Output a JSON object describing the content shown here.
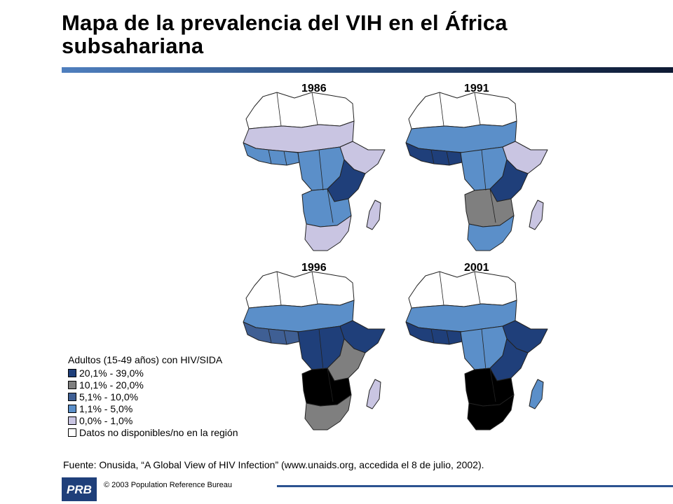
{
  "title": "Mapa de la prevalencia del VIH en el África subsahariana",
  "colors": {
    "c20_39": "#1f3f7a",
    "c10_20": "#7f7f7f",
    "c5_10": "#3f5f94",
    "c1_5": "#5b8fc9",
    "c0_1": "#c9c5e2",
    "no_data": "#ffffff",
    "severe": "#000000",
    "title_bar": "#2c4f80"
  },
  "maps": [
    {
      "year": "1986",
      "levels": {
        "north": "no_data",
        "sahel": "c0_1",
        "west": "c1_5",
        "horn": "c0_1",
        "central": "c1_5",
        "east": "c20_39",
        "south_central": "c1_5",
        "south": "c0_1",
        "madagascar": "c0_1"
      }
    },
    {
      "year": "1991",
      "levels": {
        "north": "no_data",
        "sahel": "c1_5",
        "west": "c20_39",
        "horn": "c0_1",
        "central": "c1_5",
        "east": "c20_39",
        "south_central": "c10_20",
        "south": "c1_5",
        "madagascar": "c0_1"
      }
    },
    {
      "year": "1996",
      "levels": {
        "north": "no_data",
        "sahel": "c1_5",
        "west": "c5_10",
        "horn": "c20_39",
        "central": "c20_39",
        "east": "c10_20",
        "south_central": "severe",
        "south": "c10_20",
        "madagascar": "c0_1"
      }
    },
    {
      "year": "2001",
      "levels": {
        "north": "no_data",
        "sahel": "c1_5",
        "west": "c20_39",
        "horn": "c20_39",
        "central": "c1_5",
        "east": "c20_39",
        "south_central": "severe",
        "south": "severe",
        "madagascar": "c1_5"
      }
    }
  ],
  "legend": {
    "title": "Adultos (15-49 años) con HIV/SIDA",
    "items": [
      {
        "label": "20,1% - 39,0%",
        "color": "#1f3f7a"
      },
      {
        "label": "10,1% - 20,0%",
        "color": "#7f7f7f"
      },
      {
        "label": "5,1% - 10,0%",
        "color": "#3f5f94"
      },
      {
        "label": "1,1% - 5,0%",
        "color": "#5b8fc9"
      },
      {
        "label": "0,0% - 1,0%",
        "color": "#c9c5e2"
      },
      {
        "label": "Datos no disponibles/no en la región",
        "color": "#ffffff"
      }
    ]
  },
  "source": "Fuente: Onusida, “A Global View of HIV Infection” (www.unaids.org, accedida el 8 de julio, 2002).",
  "footer": {
    "logo_text": "PRB",
    "copyright": "© 2003 Population Reference Bureau"
  }
}
